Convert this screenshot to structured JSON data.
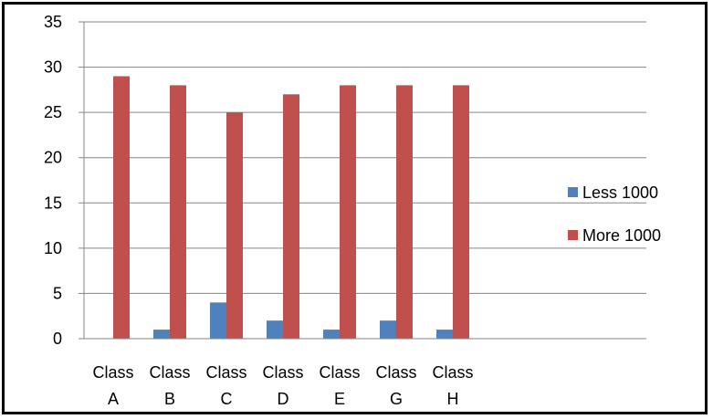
{
  "chart_data": {
    "type": "bar",
    "categories": [
      {
        "line1": "Class",
        "line2": "A"
      },
      {
        "line1": "Class",
        "line2": "B"
      },
      {
        "line1": "Class",
        "line2": "C"
      },
      {
        "line1": "Class",
        "line2": "D"
      },
      {
        "line1": "Class",
        "line2": "E"
      },
      {
        "line1": "Class",
        "line2": "G"
      },
      {
        "line1": "Class",
        "line2": "H"
      }
    ],
    "series": [
      {
        "name": "Less 1000",
        "color": "#4f81bd",
        "values": [
          0,
          1,
          4,
          2,
          1,
          2,
          1
        ]
      },
      {
        "name": "More 1000",
        "color": "#c0504d",
        "values": [
          29,
          28,
          25,
          27,
          28,
          28,
          28
        ]
      }
    ],
    "ylim": [
      0,
      35
    ],
    "yticks": [
      0,
      5,
      10,
      15,
      20,
      25,
      30,
      35
    ],
    "grid": true,
    "legend_position": "right",
    "title": "",
    "xlabel": "",
    "ylabel": ""
  }
}
